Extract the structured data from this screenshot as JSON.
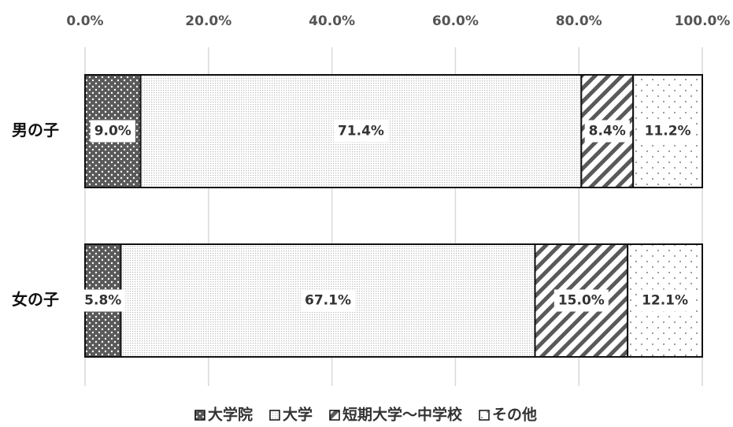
{
  "chart_data": {
    "type": "stacked_bar_horizontal",
    "categories": [
      "男の子",
      "女の子"
    ],
    "series": [
      {
        "name": "大学院",
        "color": "#595959",
        "pattern": "dots-on-dark",
        "values": [
          9.0,
          5.8
        ],
        "value_labels": [
          "9.0%",
          "5.8%"
        ]
      },
      {
        "name": "大学",
        "color": "#bfbfbf",
        "pattern": "fine-dots",
        "values": [
          71.4,
          67.1
        ],
        "value_labels": [
          "71.4%",
          "67.1%"
        ]
      },
      {
        "name": "短期大学～中学校",
        "color": "#595959",
        "pattern": "diagonal",
        "values": [
          8.4,
          15.0
        ],
        "value_labels": [
          "8.4%",
          "15.0%"
        ]
      },
      {
        "name": "その他",
        "color": "#7f7f7f",
        "pattern": "sparse-dots",
        "values": [
          11.2,
          12.1
        ],
        "value_labels": [
          "11.2%",
          "12.1%"
        ]
      }
    ],
    "xlim": [
      0,
      100
    ],
    "xticks": [
      {
        "value": 0,
        "label": "0.0%"
      },
      {
        "value": 20,
        "label": "20.0%"
      },
      {
        "value": 40,
        "label": "40.0%"
      },
      {
        "value": 60,
        "label": "60.0%"
      },
      {
        "value": 80,
        "label": "80.0%"
      },
      {
        "value": 100,
        "label": "100.0%"
      }
    ],
    "grid": true,
    "legend": "bottom"
  }
}
